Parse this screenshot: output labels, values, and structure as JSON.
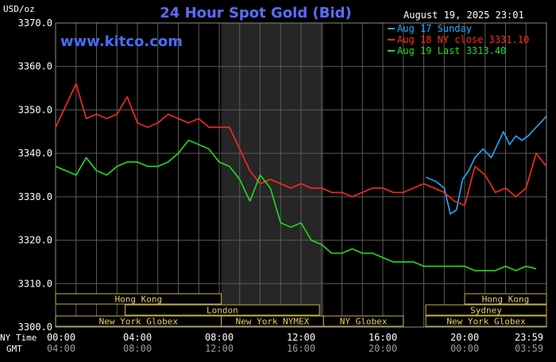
{
  "header": {
    "unit": "USD/oz",
    "title": "24 Hour Spot Gold (Bid)",
    "timestamp": "August 19, 2025 23:01",
    "brand": "www.kitco.com"
  },
  "legend": [
    {
      "label": "Aug 17 Sunday",
      "color": "#22aaff"
    },
    {
      "label": "Aug 18 NY close 3331.10",
      "color": "#ff2a1a"
    },
    {
      "label": "Aug 19 Last 3313.40",
      "color": "#22dd22"
    }
  ],
  "time_rows": {
    "ny_label": "NY Time",
    "gmt_label": "GMT",
    "ny_ticks": [
      "00:00",
      "04:00",
      "08:00",
      "12:00",
      "16:00",
      "20:00",
      "23:59"
    ],
    "gmt_ticks": [
      "04:00",
      "08:00",
      "12:00",
      "16:00",
      "20:00",
      "00:00",
      "03:59"
    ]
  },
  "sessions": [
    {
      "label": "Hong Kong",
      "start": 0,
      "end": 8.1,
      "row": 0
    },
    {
      "label": "London",
      "start": 3.4,
      "end": 12.9,
      "row": 1
    },
    {
      "label": "New York Globex",
      "start": 0,
      "end": 8.1,
      "row": 2
    },
    {
      "label": "New York NYMEX",
      "start": 8.1,
      "end": 13.1,
      "row": 2
    },
    {
      "label": "NY Globex",
      "start": 13.1,
      "end": 17.0,
      "row": 2
    },
    {
      "label": "Sydney",
      "start": 18.1,
      "end": 24,
      "row": 1
    },
    {
      "label": "Hong Kong",
      "start": 20.0,
      "end": 24,
      "row": 0
    },
    {
      "label": "New York Globex",
      "start": 18.1,
      "end": 24,
      "row": 2
    }
  ],
  "chart_data": {
    "type": "line",
    "title": "24 Hour Spot Gold (Bid)",
    "ylabel": "USD/oz",
    "xlabel": "NY Time / GMT",
    "xlim": [
      0,
      24
    ],
    "ylim": [
      3300,
      3370
    ],
    "y_ticks": [
      "3300.0",
      "3310.0",
      "3320.0",
      "3330.0",
      "3340.0",
      "3350.0",
      "3360.0",
      "3370.0"
    ],
    "grid": true,
    "legend_position": "top-right",
    "shaded_region": [
      8.1,
      13.1
    ],
    "series": [
      {
        "name": "Aug 17 Sunday",
        "color": "#22aaff",
        "x": [
          18.1,
          18.6,
          19.0,
          19.3,
          19.6,
          19.9,
          20.2,
          20.5,
          20.9,
          21.3,
          21.6,
          21.9,
          22.2,
          22.5,
          22.8,
          23.1,
          23.4,
          23.7,
          24.0
        ],
        "y": [
          3334.5,
          3333.5,
          3332.0,
          3326.0,
          3327.0,
          3334.0,
          3336.0,
          3339.0,
          3341.0,
          3339.0,
          3342.0,
          3345.0,
          3342.0,
          3344.0,
          3343.0,
          3344.0,
          3345.5,
          3347.0,
          3348.5
        ]
      },
      {
        "name": "Aug 18 NY close 3331.10",
        "color": "#ff2a1a",
        "x": [
          0,
          0.5,
          1.0,
          1.5,
          2.0,
          2.5,
          3.0,
          3.5,
          4.0,
          4.5,
          5.0,
          5.5,
          6.0,
          6.5,
          7.0,
          7.5,
          8.0,
          8.5,
          9.0,
          9.5,
          10.0,
          10.5,
          11.0,
          11.5,
          12.0,
          12.5,
          13.0,
          13.5,
          14.0,
          14.5,
          15.0,
          15.5,
          16.0,
          16.5,
          17.0,
          17.5,
          18.0,
          18.5,
          19.0,
          19.5,
          20.0,
          20.5,
          21.0,
          21.5,
          22.0,
          22.5,
          23.0,
          23.5,
          24.0
        ],
        "y": [
          3346,
          3351,
          3356,
          3348,
          3349,
          3348,
          3349,
          3353,
          3347,
          3346,
          3347,
          3349,
          3348,
          3347,
          3348,
          3346,
          3346,
          3346,
          3341,
          3336,
          3333,
          3334,
          3333,
          3332,
          3333,
          3332,
          3332,
          3331,
          3331,
          3330,
          3331,
          3332,
          3332,
          3331,
          3331,
          3332,
          3333,
          3332,
          3331,
          3329,
          3328,
          3337,
          3335,
          3331,
          3332,
          3330,
          3332,
          3340,
          3337
        ]
      },
      {
        "name": "Aug 19 Last 3313.40",
        "color": "#22dd22",
        "x": [
          0,
          0.5,
          1.0,
          1.5,
          2.0,
          2.5,
          3.0,
          3.5,
          4.0,
          4.5,
          5.0,
          5.5,
          6.0,
          6.5,
          7.0,
          7.5,
          8.0,
          8.5,
          9.0,
          9.5,
          10.0,
          10.5,
          11.0,
          11.5,
          12.0,
          12.5,
          13.0,
          13.5,
          14.0,
          14.5,
          15.0,
          15.5,
          16.0,
          16.5,
          17.0,
          17.5,
          18.0,
          18.5,
          19.0,
          19.5,
          20.0,
          20.5,
          21.0,
          21.5,
          22.0,
          22.5,
          23.0,
          23.5
        ],
        "y": [
          3337,
          3336,
          3335,
          3339,
          3336,
          3335,
          3337,
          3338,
          3338,
          3337,
          3337,
          3338,
          3340,
          3343,
          3342,
          3341,
          3338,
          3337,
          3334,
          3329,
          3335,
          3332,
          3324,
          3323,
          3324,
          3320,
          3319,
          3317,
          3317,
          3318,
          3317,
          3317,
          3316,
          3315,
          3315,
          3315,
          3314,
          3314,
          3314,
          3314,
          3314,
          3313,
          3313,
          3313,
          3314,
          3313,
          3314,
          3313.4
        ]
      }
    ]
  }
}
